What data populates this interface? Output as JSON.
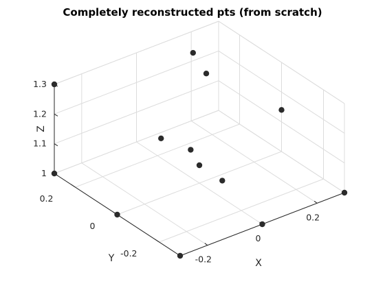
{
  "chart_data": {
    "type": "scatter",
    "title": "Completely reconstructed pts (from scratch)",
    "xlabel": "X",
    "ylabel": "Y",
    "zlabel": "Z",
    "xticks": [
      "-0.2",
      "0",
      "0.2"
    ],
    "yticks": [
      "-0.2",
      "0",
      "0.2"
    ],
    "zticks": [
      "1",
      "1.1",
      "1.2",
      "1.3"
    ],
    "grid": true,
    "points": [
      {
        "x": -0.3,
        "y": 0.3,
        "z": 1.3
      },
      {
        "x": -0.3,
        "y": 0.3,
        "z": 1.0
      },
      {
        "x": -0.3,
        "y": 0.0,
        "z": 1.0
      },
      {
        "x": -0.3,
        "y": -0.3,
        "z": 1.0
      },
      {
        "x": 0.0,
        "y": -0.3,
        "z": 1.0
      },
      {
        "x": 0.3,
        "y": -0.3,
        "z": 1.0
      },
      {
        "x": -0.14,
        "y": 0.0,
        "z": 1.2
      },
      {
        "x": -0.07,
        "y": -0.05,
        "z": 1.16
      },
      {
        "x": 0.0,
        "y": 0.0,
        "z": 1.06
      },
      {
        "x": 0.03,
        "y": -0.07,
        "z": 1.03
      },
      {
        "x": 0.13,
        "y": 0.2,
        "z": 1.3
      },
      {
        "x": 0.14,
        "y": 0.15,
        "z": 1.25
      },
      {
        "x": 0.3,
        "y": 0.0,
        "z": 1.14
      }
    ]
  }
}
